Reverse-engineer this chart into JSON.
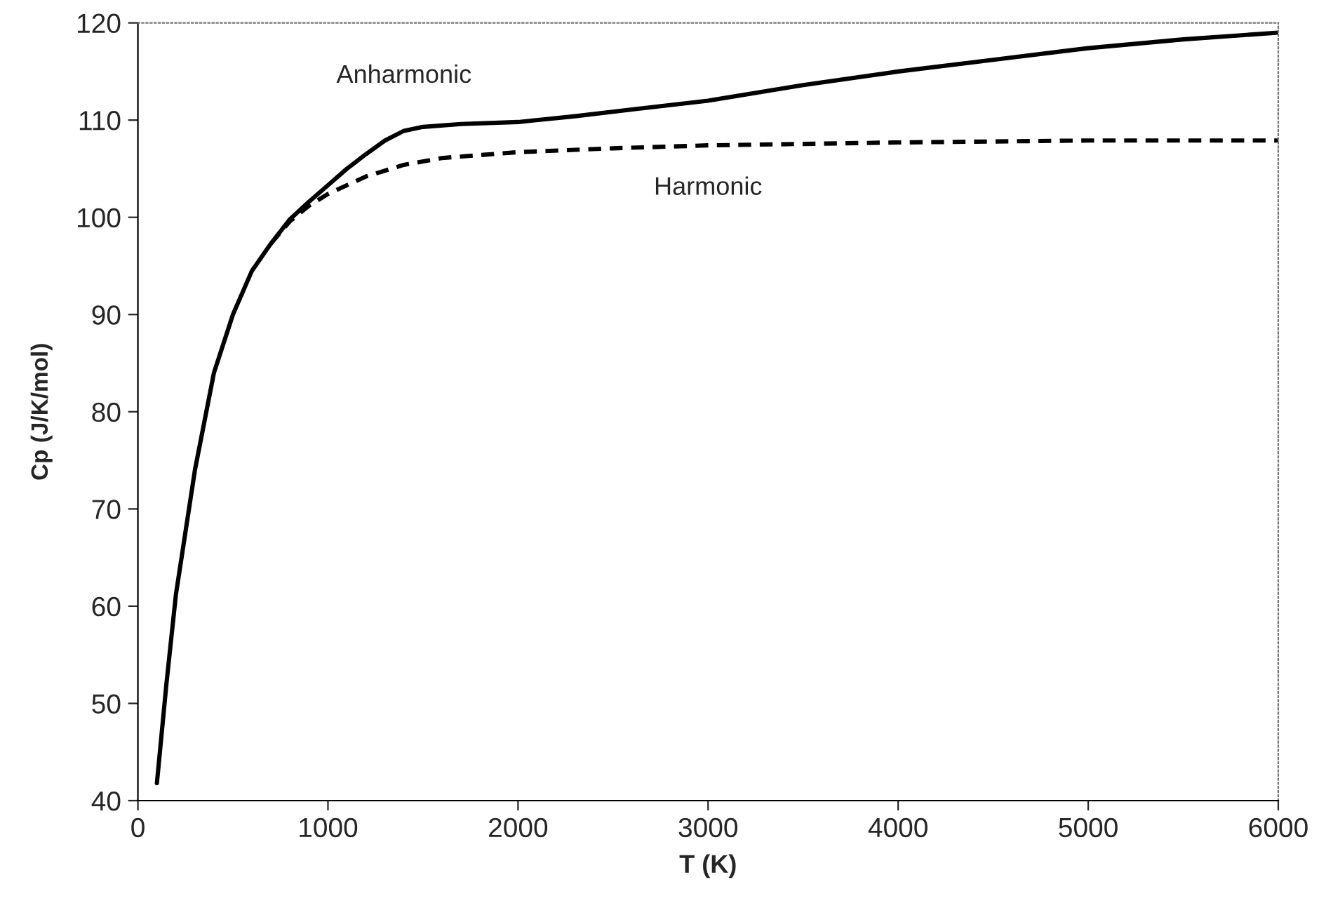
{
  "chart_data": {
    "type": "line",
    "xlabel": "T (K)",
    "ylabel": "Cp (J/K/mol)",
    "xlim": [
      0,
      6000
    ],
    "xticks": [
      0,
      1000,
      2000,
      3000,
      4000,
      5000,
      6000
    ],
    "ylim": [
      40,
      120
    ],
    "yticks": [
      40,
      50,
      60,
      70,
      80,
      90,
      100,
      110,
      120
    ],
    "grid": false,
    "legend": false,
    "marker": "none",
    "series": [
      {
        "name": "Anharmonic",
        "color": "#000000",
        "line_style": "solid",
        "x": [
          100,
          150,
          200,
          300,
          400,
          500,
          600,
          700,
          800,
          900,
          1000,
          1100,
          1200,
          1300,
          1400,
          1500,
          1700,
          2000,
          2300,
          2600,
          3000,
          3500,
          4000,
          4500,
          5000,
          5500,
          6000
        ],
        "values": [
          41.8,
          52,
          61.2,
          74,
          84,
          90,
          94.5,
          97.3,
          99.8,
          101.6,
          103.3,
          105,
          106.5,
          107.9,
          108.9,
          109.3,
          109.6,
          109.8,
          110.4,
          111.1,
          112.0,
          113.6,
          115.0,
          116.2,
          117.4,
          118.3,
          119.0
        ]
      },
      {
        "name": "Harmonic",
        "color": "#000000",
        "line_style": "dashed",
        "x": [
          700,
          800,
          900,
          1000,
          1200,
          1400,
          1600,
          2000,
          2500,
          3000,
          4000,
          5000,
          6000
        ],
        "values": [
          97.3,
          99.6,
          101.2,
          102.4,
          104.2,
          105.4,
          106.1,
          106.7,
          107.1,
          107.4,
          107.7,
          107.9,
          107.9
        ]
      }
    ]
  }
}
